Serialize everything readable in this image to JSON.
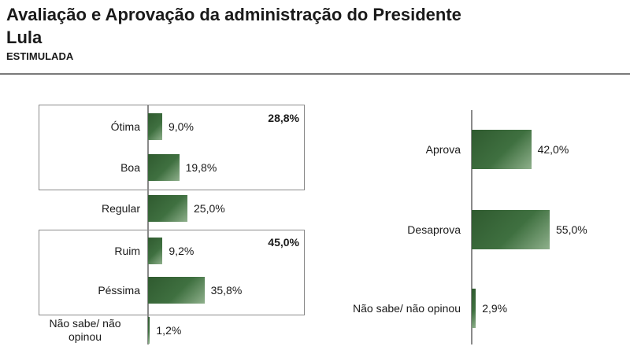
{
  "header": {
    "title": "Avaliação e Aprovação da administração do Presidente Lula",
    "subtitle": "ESTIMULADA"
  },
  "chart_data": [
    {
      "type": "bar",
      "orientation": "horizontal",
      "categories": [
        "Ótima",
        "Boa",
        "Regular",
        "Ruim",
        "Péssima",
        "Não sabe/ não opinou"
      ],
      "values": [
        9.0,
        19.8,
        25.0,
        9.2,
        35.8,
        1.2
      ],
      "value_labels": [
        "9,0%",
        "19,8%",
        "25,0%",
        "9,2%",
        "35,8%",
        "1,2%"
      ],
      "groups": [
        {
          "members": [
            "Ótima",
            "Boa"
          ],
          "total": 28.8,
          "total_label": "28,8%"
        },
        {
          "members": [
            "Ruim",
            "Péssima"
          ],
          "total": 45.0,
          "total_label": "45,0%"
        }
      ],
      "bar_color": "#3f6b3f",
      "xlim": [
        0,
        60
      ]
    },
    {
      "type": "bar",
      "orientation": "horizontal",
      "categories": [
        "Aprova",
        "Desaprova",
        "Não sabe/ não opinou"
      ],
      "values": [
        42.0,
        55.0,
        2.9
      ],
      "value_labels": [
        "42,0%",
        "55,0%",
        "2,9%"
      ],
      "bar_color": "#3f6b3f",
      "xlim": [
        0,
        60
      ]
    }
  ]
}
